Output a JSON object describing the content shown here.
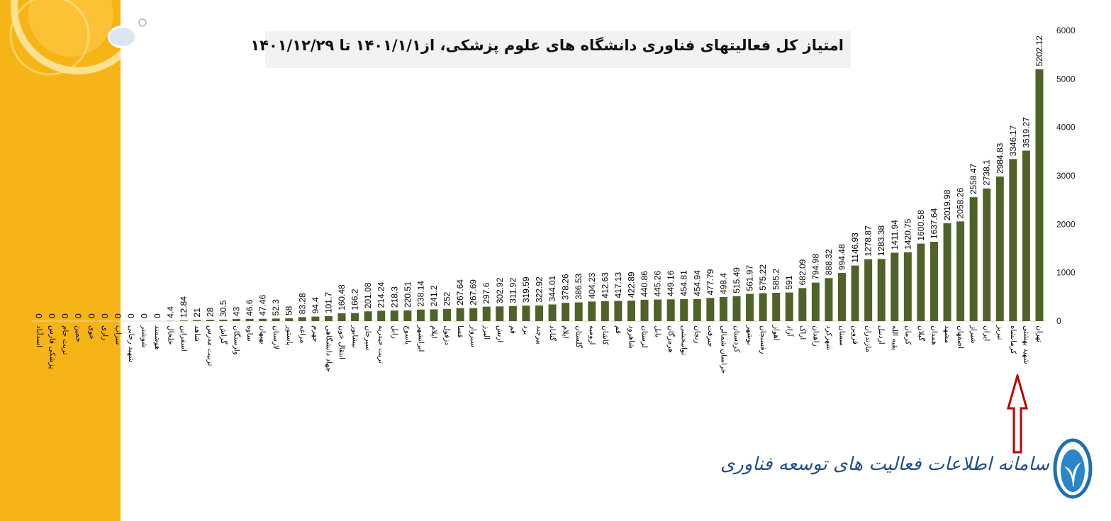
{
  "title": "امتیاز کل فعالیتهای فناوری دانشگاه های علوم پزشکی، از۱۴۰۱/۱/۱ تا ۱۴۰۱/۱۲/۲۹",
  "logo_text": "سامانه اطلاعات فعالیت های توسعه فناوری",
  "colors": {
    "bar": "#4f6228",
    "panel": "#f7b416",
    "arrow": "#c00000"
  },
  "icons": {
    "logo": "leaf-logo-icon",
    "arrow": "up-arrow-icon"
  },
  "chart_data": {
    "type": "bar",
    "title": "امتیاز کل فعالیتهای فناوری دانشگاه های علوم پزشکی، از۱۴۰۱/۱/۱ تا ۱۴۰۱/۱۲/۲۹",
    "xlabel": "",
    "ylabel": "",
    "ylim": [
      0,
      6000
    ],
    "yticks": [
      0,
      1000,
      2000,
      3000,
      4000,
      5000,
      6000
    ],
    "grid": false,
    "legend": "none",
    "categories": [
      "اسدآباد",
      "پزشکی فارس",
      "تربت جام",
      "خمین",
      "خوی",
      "رازی",
      "سراب",
      "شهید رجایی",
      "شوشتر",
      "هوشمند",
      "خلخال",
      "اسفراین",
      "شاهد",
      "تربیت مدرس",
      "گراش",
      "وارستگان",
      "ساوه",
      "بهبهان",
      "لارستان",
      "پاستور",
      "مراغه",
      "جهرم",
      "جهاد دانشگاهی",
      "انتقال خون",
      "نیشابور",
      "سیرجان",
      "تربت حیدریه",
      "زابل",
      "یاسوج",
      "ایرانشهر",
      "ایلام",
      "دزفول",
      "فسا",
      "سبزوار",
      "البرز",
      "ارتش",
      "قم",
      "یزد",
      "بیرجند",
      "گناباد",
      "ایلام",
      "گلستان",
      "ارومیه",
      "کاشان",
      "قم",
      "شاهرود",
      "لرستان",
      "بابل",
      "هرمزگان",
      "توانبخشی",
      "زنجان",
      "جیرفت",
      "خراسان شمالی",
      "کردستان",
      "بوشهر",
      "رفسنجان",
      "اهواز",
      "آزاد",
      "اراک",
      "زاهدان",
      "شهرکرد",
      "سمنان",
      "قزوین",
      "مازندران",
      "اردبیل",
      "بقیه الله",
      "کرمان",
      "گیلان",
      "همدان",
      "مشهد",
      "اصفهان",
      "شیراز",
      "ایران",
      "تبریز",
      "کرمانشاه",
      "شهید بهشتی",
      "تهران"
    ],
    "values": [
      0,
      0,
      0,
      0,
      0,
      0,
      0,
      0,
      0,
      0,
      4.4,
      12.84,
      21,
      28,
      30.5,
      43,
      46.6,
      47.46,
      52.3,
      58,
      83.28,
      94.4,
      101.7,
      160.48,
      166.2,
      201.08,
      214.24,
      218.3,
      220.51,
      238.14,
      241.2,
      252,
      267.64,
      267.69,
      297.6,
      302.92,
      311.92,
      319.59,
      322.92,
      344.01,
      378.26,
      386.53,
      404.23,
      412.63,
      417.13,
      422.89,
      440.86,
      445.26,
      449.16,
      454.81,
      454.94,
      477.79,
      498.4,
      515.49,
      561.97,
      575.22,
      585.2,
      591,
      682.09,
      794.98,
      888.32,
      994.48,
      1146.93,
      1278.87,
      1283.38,
      1411.94,
      1420.75,
      1600.58,
      1637.64,
      2019.98,
      2058.26,
      2558.47,
      2738.1,
      2984.83,
      3346.17,
      3519.27,
      5202.12
    ]
  }
}
